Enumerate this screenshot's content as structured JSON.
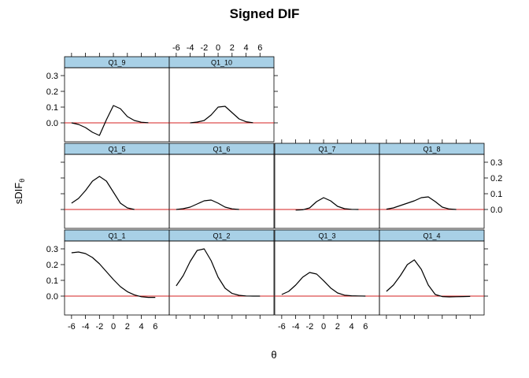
{
  "chart_data": {
    "type": "line",
    "title": "Signed DIF",
    "xlabel": "θ",
    "ylabel": "sDIF",
    "ylabel_subscript": "θ",
    "xlim": [
      -7,
      8
    ],
    "ylim": [
      -0.12,
      0.35
    ],
    "x_ticks": [
      -6,
      -4,
      -2,
      0,
      2,
      4,
      6
    ],
    "y_ticks": [
      0.0,
      0.1,
      0.2,
      0.3
    ],
    "x_tick_labels": [
      "-6",
      "-4",
      "-2",
      "0",
      "2",
      "4",
      "6"
    ],
    "y_tick_labels": [
      "0.0",
      "0.1",
      "0.2",
      "0.3"
    ],
    "colors": {
      "curve": "#000000",
      "reference_line": "#d62020",
      "strip": "#a8d0e6",
      "frame": "#000000"
    },
    "panels": [
      {
        "label": "Q1_1",
        "x": [
          -6,
          -5,
          -4,
          -3,
          -2,
          -1,
          0,
          1,
          2,
          3,
          4,
          5,
          6
        ],
        "y": [
          0.275,
          0.28,
          0.27,
          0.245,
          0.205,
          0.155,
          0.105,
          0.06,
          0.028,
          0.008,
          -0.004,
          -0.008,
          -0.008
        ]
      },
      {
        "label": "Q1_2",
        "x": [
          -6,
          -5,
          -4,
          -3,
          -2,
          -1,
          0,
          1,
          2,
          3,
          4,
          5,
          6
        ],
        "y": [
          0.065,
          0.13,
          0.22,
          0.29,
          0.3,
          0.225,
          0.12,
          0.05,
          0.017,
          0.005,
          0.001,
          0.0,
          0.0
        ]
      },
      {
        "label": "Q1_3",
        "x": [
          -6,
          -5,
          -4,
          -3,
          -2,
          -1,
          0,
          1,
          2,
          3,
          4,
          5,
          6
        ],
        "y": [
          0.01,
          0.03,
          0.07,
          0.12,
          0.15,
          0.14,
          0.098,
          0.052,
          0.02,
          0.006,
          0.002,
          0.001,
          0.0
        ]
      },
      {
        "label": "Q1_4",
        "x": [
          -6,
          -5,
          -4,
          -3,
          -2,
          -1,
          0,
          1,
          2,
          3,
          4,
          5,
          6
        ],
        "y": [
          0.03,
          0.07,
          0.13,
          0.2,
          0.23,
          0.17,
          0.07,
          0.01,
          -0.003,
          -0.005,
          -0.004,
          -0.003,
          -0.002
        ]
      },
      {
        "label": "Q1_5",
        "x": [
          -6,
          -5,
          -4,
          -3,
          -2,
          -1,
          0,
          1,
          2,
          3
        ],
        "y": [
          0.04,
          0.07,
          0.12,
          0.18,
          0.21,
          0.18,
          0.11,
          0.04,
          0.01,
          0.0
        ]
      },
      {
        "label": "Q1_6",
        "x": [
          -6,
          -5,
          -4,
          -3,
          -2,
          -1,
          0,
          1,
          2,
          3
        ],
        "y": [
          0.0,
          0.005,
          0.015,
          0.035,
          0.055,
          0.06,
          0.04,
          0.015,
          0.004,
          0.0
        ]
      },
      {
        "label": "Q1_7",
        "x": [
          -4,
          -3,
          -2,
          -1,
          0,
          1,
          2,
          3,
          4,
          5
        ],
        "y": [
          -0.004,
          -0.002,
          0.01,
          0.05,
          0.075,
          0.055,
          0.02,
          0.005,
          0.001,
          0.0
        ]
      },
      {
        "label": "Q1_8",
        "x": [
          -6,
          -5,
          -4,
          -3,
          -2,
          -1,
          0,
          1,
          2,
          3,
          4
        ],
        "y": [
          0.002,
          0.01,
          0.025,
          0.04,
          0.055,
          0.075,
          0.08,
          0.05,
          0.015,
          0.003,
          0.0
        ]
      },
      {
        "label": "Q1_9",
        "x": [
          -6,
          -5,
          -4,
          -3,
          -2,
          -1,
          0,
          1,
          2,
          3,
          4,
          5
        ],
        "y": [
          0.0,
          -0.01,
          -0.03,
          -0.06,
          -0.08,
          0.02,
          0.11,
          0.09,
          0.04,
          0.015,
          0.004,
          0.001
        ]
      },
      {
        "label": "Q1_10",
        "x": [
          -4,
          -3,
          -2,
          -1,
          0,
          1,
          2,
          3,
          4,
          5
        ],
        "y": [
          0.0,
          0.005,
          0.015,
          0.05,
          0.1,
          0.105,
          0.065,
          0.025,
          0.007,
          0.001
        ]
      }
    ]
  }
}
